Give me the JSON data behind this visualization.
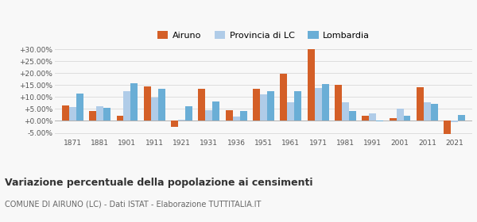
{
  "years": [
    1871,
    1881,
    1901,
    1911,
    1921,
    1931,
    1936,
    1951,
    1961,
    1971,
    1981,
    1991,
    2001,
    2011,
    2021
  ],
  "airuno": [
    6.5,
    4.0,
    2.0,
    14.5,
    -2.5,
    13.5,
    4.5,
    13.5,
    19.8,
    30.0,
    15.2,
    2.0,
    1.0,
    14.0,
    -5.5
  ],
  "provincia": [
    5.8,
    6.2,
    12.5,
    9.8,
    0.5,
    4.5,
    1.8,
    11.2,
    7.8,
    13.8,
    7.8,
    3.3,
    5.0,
    7.8,
    -0.5
  ],
  "lombardia": [
    11.5,
    5.6,
    15.8,
    13.3,
    6.0,
    8.0,
    4.3,
    12.3,
    12.5,
    15.3,
    4.0,
    -0.2,
    2.0,
    7.2,
    2.5
  ],
  "color_airuno": "#d45f27",
  "color_provincia": "#b0cce8",
  "color_lombardia": "#6aaed6",
  "title": "Variazione percentuale della popolazione ai censimenti",
  "subtitle": "COMUNE DI AIRUNO (LC) - Dati ISTAT - Elaborazione TUTTITALIA.IT",
  "legend_labels": [
    "Airuno",
    "Provincia di LC",
    "Lombardia"
  ],
  "ylim": [
    -7,
    32
  ],
  "yticks": [
    -5,
    0,
    5,
    10,
    15,
    20,
    25,
    30
  ],
  "bg_color": "#f8f8f8",
  "grid_color": "#dddddd"
}
